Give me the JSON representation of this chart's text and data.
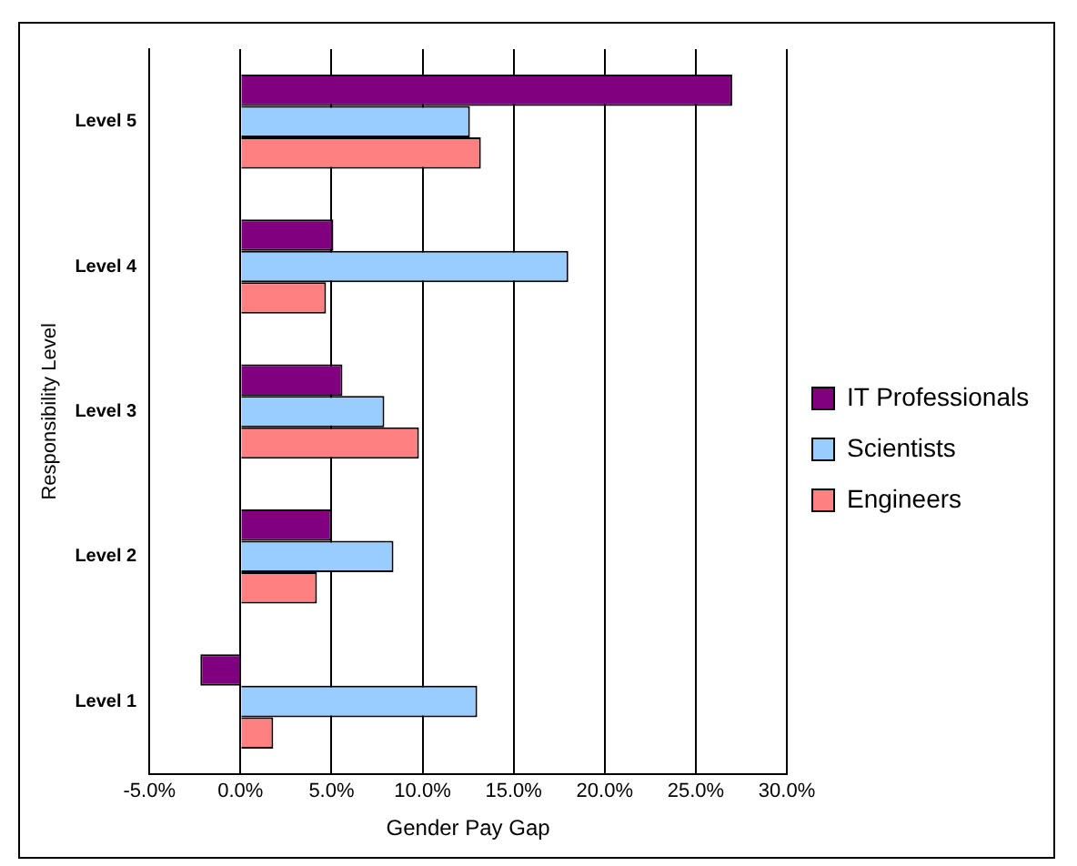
{
  "chart_data": {
    "type": "bar",
    "orientation": "horizontal",
    "xlabel": "Gender Pay Gap",
    "ylabel": "Responsibility Level",
    "categories": [
      "Level 5",
      "Level 4",
      "Level 3",
      "Level 2",
      "Level 1"
    ],
    "series": [
      {
        "name": "IT Professionals",
        "color": "#800080",
        "values": [
          27.0,
          5.1,
          5.6,
          5.0,
          -2.2
        ]
      },
      {
        "name": "Scientists",
        "color": "#99ccff",
        "values": [
          12.6,
          18.0,
          7.9,
          8.4,
          13.0
        ]
      },
      {
        "name": "Engineers",
        "color": "#ff8080",
        "values": [
          13.2,
          4.7,
          9.8,
          4.2,
          1.8
        ]
      }
    ],
    "xlim": [
      -5,
      30
    ],
    "xticks": [
      {
        "value": -5,
        "label": "-5.0%"
      },
      {
        "value": 0,
        "label": "0.0%"
      },
      {
        "value": 5,
        "label": "5.0%"
      },
      {
        "value": 10,
        "label": "10.0%"
      },
      {
        "value": 15,
        "label": "15.0%"
      },
      {
        "value": 20,
        "label": "20.0%"
      },
      {
        "value": 25,
        "label": "25.0%"
      },
      {
        "value": 30,
        "label": "30.0%"
      }
    ],
    "grid": "x",
    "legend": "right"
  }
}
